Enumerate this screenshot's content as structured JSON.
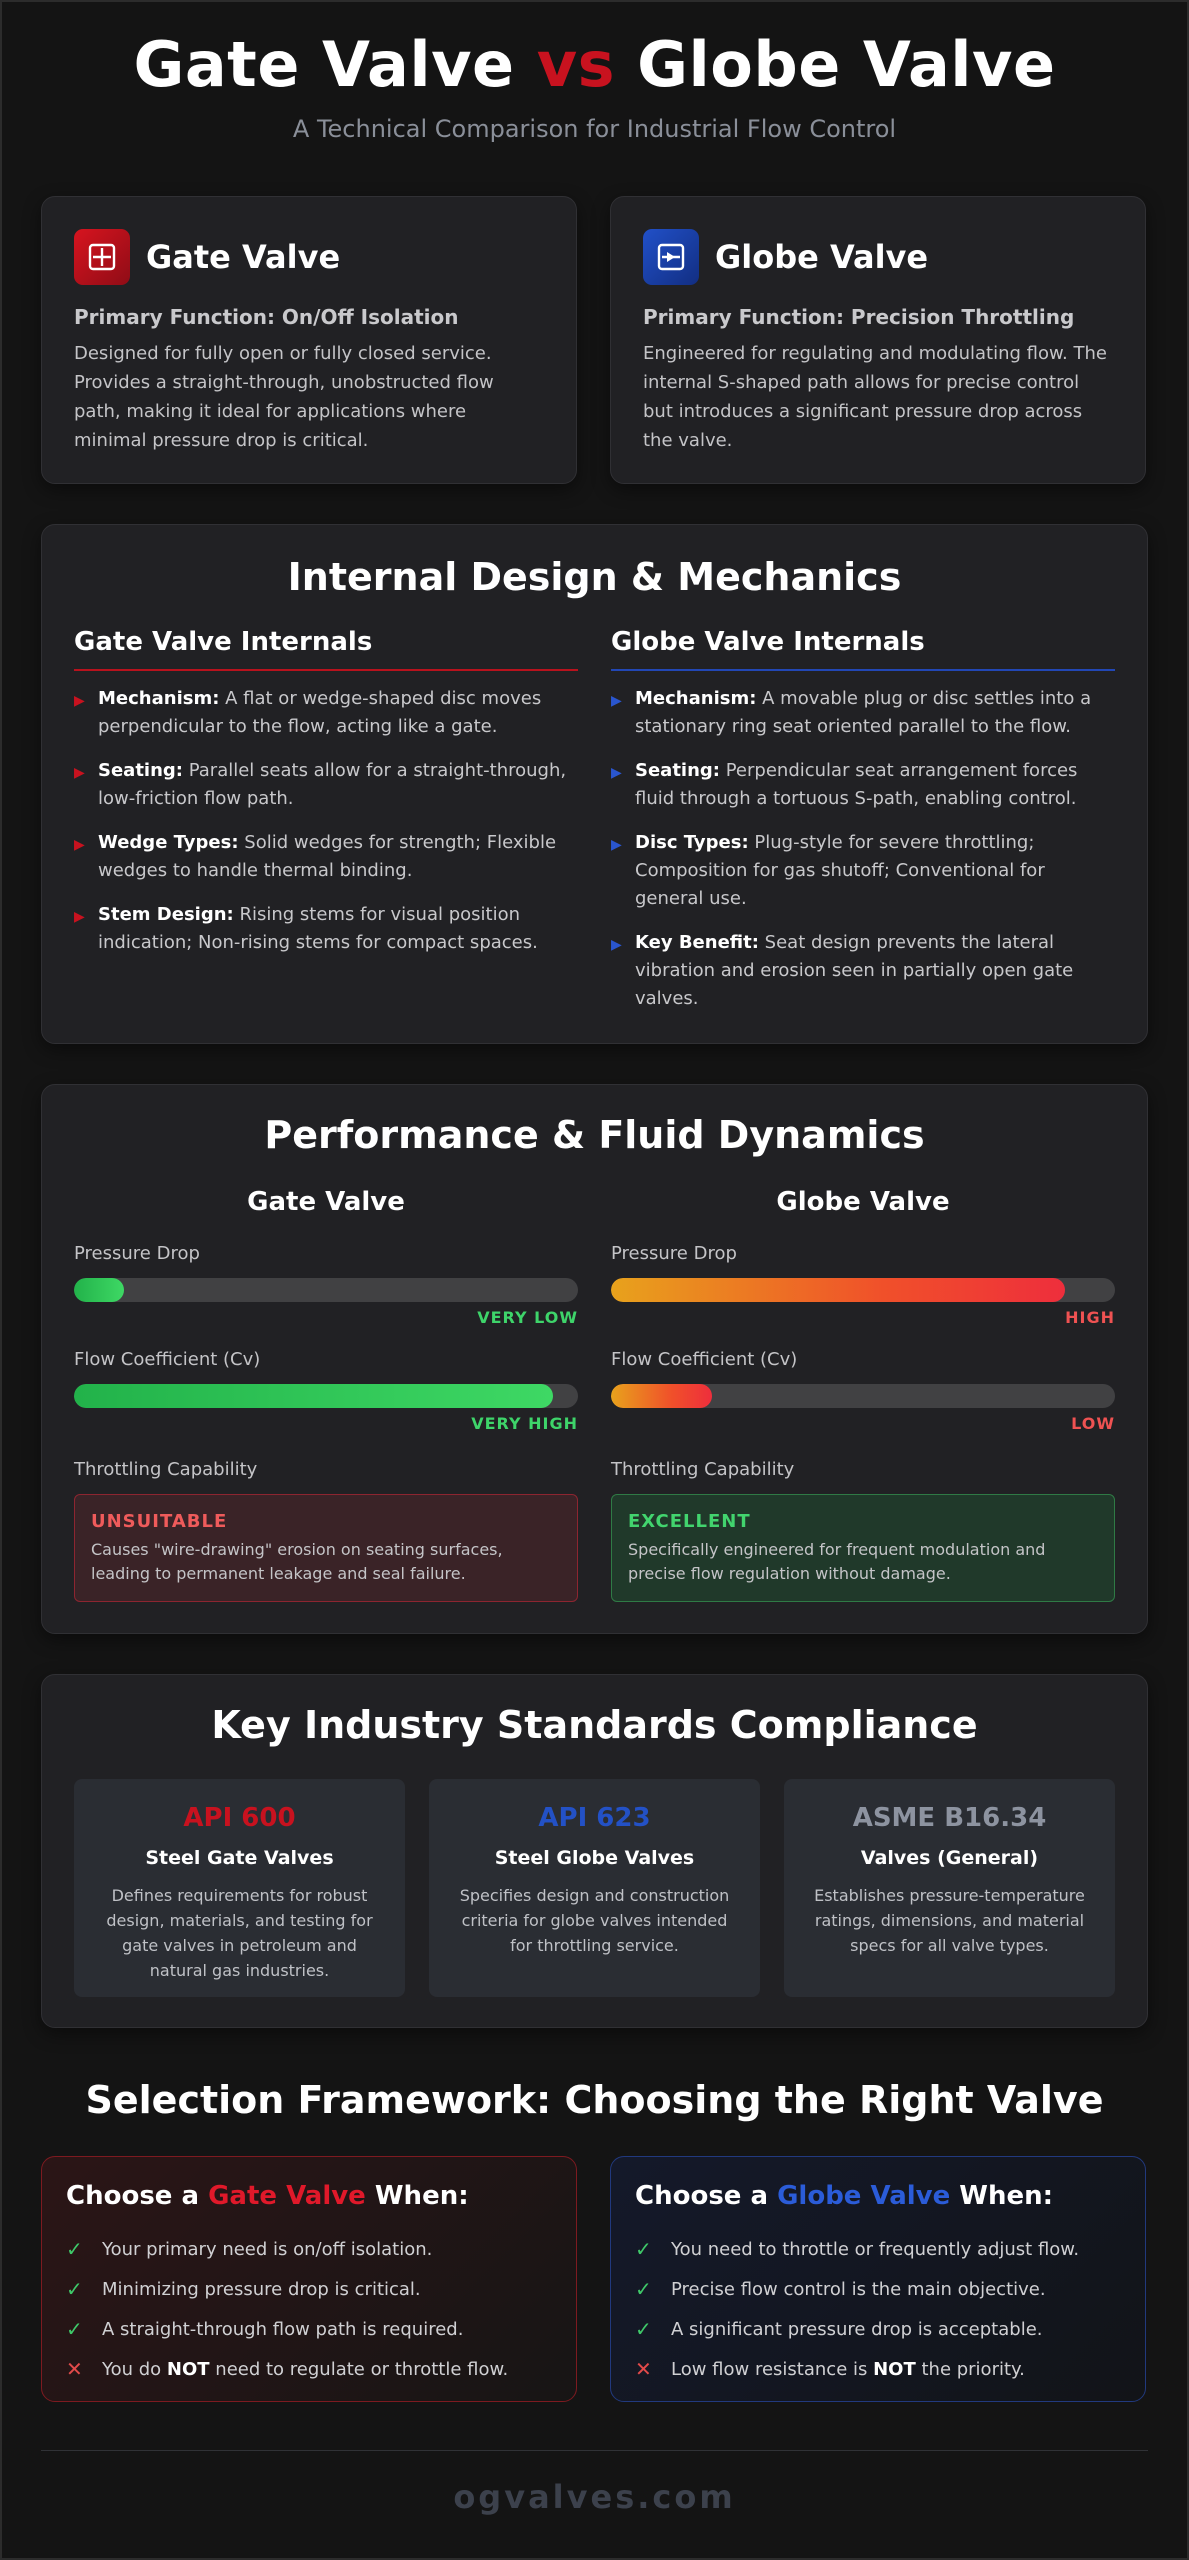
{
  "header": {
    "title_part1": "Gate Valve",
    "title_vs": "vs",
    "title_part2": "Globe Valve",
    "subtitle": "A Technical Comparison for Industrial Flow Control"
  },
  "intro": {
    "gate": {
      "icon": "gate-valve-icon",
      "title": "Gate Valve",
      "function": "Primary Function: On/Off Isolation",
      "description": "Designed for fully open or fully closed service. Provides a straight-through, unobstructed flow path, making it ideal for applications where minimal pressure drop is critical."
    },
    "globe": {
      "icon": "globe-valve-icon",
      "title": "Globe Valve",
      "function": "Primary Function: Precision Throttling",
      "description": "Engineered for regulating and modulating flow. The internal S-shaped path allows for precise control but introduces a significant pressure drop across the valve."
    }
  },
  "design": {
    "title": "Internal Design & Mechanics",
    "gate": {
      "title": "Gate Valve Internals",
      "items": [
        {
          "term": "Mechanism:",
          "text": " A flat or wedge-shaped disc moves perpendicular to the flow, acting like a gate."
        },
        {
          "term": "Seating:",
          "text": " Parallel seats allow for a straight-through, low-friction flow path."
        },
        {
          "term": "Wedge Types:",
          "text": " Solid wedges for strength; Flexible wedges to handle thermal binding."
        },
        {
          "term": "Stem Design:",
          "text": " Rising stems for visual position indication; Non-rising stems for compact spaces."
        }
      ]
    },
    "globe": {
      "title": "Globe Valve Internals",
      "items": [
        {
          "term": "Mechanism:",
          "text": " A movable plug or disc settles into a stationary ring seat oriented parallel to the flow."
        },
        {
          "term": "Seating:",
          "text": " Perpendicular seat arrangement forces fluid through a tortuous S-path, enabling control."
        },
        {
          "term": "Disc Types:",
          "text": " Plug-style for severe throttling; Composition for gas shutoff; Conventional for general use."
        },
        {
          "term": "Key Benefit:",
          "text": " Seat design prevents the lateral vibration and erosion seen in partially open gate valves."
        }
      ]
    }
  },
  "performance": {
    "title": "Performance & Fluid Dynamics",
    "gate": {
      "title": "Gate Valve",
      "pressure_label": "Pressure Drop",
      "pressure_level": 0.1,
      "pressure_value": "VERY LOW",
      "cv_label": "Flow Coefficient (Cv)",
      "cv_level": 0.95,
      "cv_value": "VERY HIGH",
      "throttle_label": "Throttling Capability",
      "throttle_status": "UNSUITABLE",
      "throttle_desc": "Causes \"wire-drawing\" erosion on seating surfaces, leading to permanent leakage and seal failure."
    },
    "globe": {
      "title": "Globe Valve",
      "pressure_label": "Pressure Drop",
      "pressure_level": 0.9,
      "pressure_value": "HIGH",
      "cv_label": "Flow Coefficient (Cv)",
      "cv_level": 0.2,
      "cv_value": "LOW",
      "throttle_label": "Throttling Capability",
      "throttle_status": "EXCELLENT",
      "throttle_desc": "Specifically engineered for frequent modulation and precise flow regulation without damage."
    }
  },
  "standards": {
    "title": "Key Industry Standards Compliance",
    "items": [
      {
        "code": "API 600",
        "name": "Steel Gate Valves",
        "desc": "Defines requirements for robust design, materials, and testing for gate valves in petroleum and natural gas industries."
      },
      {
        "code": "API 623",
        "name": "Steel Globe Valves",
        "desc": "Specifies design and construction criteria for globe valves intended for throttling service."
      },
      {
        "code": "ASME B16.34",
        "name": "Valves (General)",
        "desc": "Establishes pressure-temperature ratings, dimensions, and material specs for all valve types."
      }
    ]
  },
  "selection": {
    "title": "Selection Framework: Choosing the Right Valve",
    "gate": {
      "prefix": "Choose a ",
      "keyword": "Gate Valve",
      "suffix": " When:",
      "items": [
        {
          "mark": "check",
          "before": "Your primary need is on/off isolation.",
          "bold": "",
          "after": ""
        },
        {
          "mark": "check",
          "before": "Minimizing pressure drop is critical.",
          "bold": "",
          "after": ""
        },
        {
          "mark": "check",
          "before": "A straight-through flow path is required.",
          "bold": "",
          "after": ""
        },
        {
          "mark": "cross",
          "before": "You do ",
          "bold": "NOT",
          "after": " need to regulate or throttle flow."
        }
      ]
    },
    "globe": {
      "prefix": "Choose a ",
      "keyword": "Globe Valve",
      "suffix": " When:",
      "items": [
        {
          "mark": "check",
          "before": "You need to throttle or frequently adjust flow.",
          "bold": "",
          "after": ""
        },
        {
          "mark": "check",
          "before": "Precise flow control is the main objective.",
          "bold": "",
          "after": ""
        },
        {
          "mark": "check",
          "before": "A significant pressure drop is acceptable.",
          "bold": "",
          "after": ""
        },
        {
          "mark": "cross",
          "before": "Low flow resistance is ",
          "bold": "NOT",
          "after": " the priority."
        }
      ]
    }
  },
  "footer": {
    "brand": "ogvalves.com"
  },
  "colors": {
    "gate_red": "#c8121f",
    "globe_blue": "#2351c6",
    "background": "#141414",
    "card": "#212124"
  }
}
